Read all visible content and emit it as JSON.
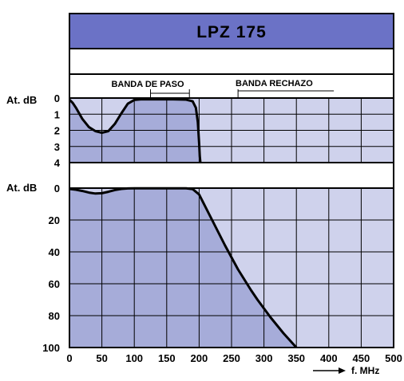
{
  "colors": {
    "title_band": "#6b72c6",
    "plot_light": "#cfd2ec",
    "plot_fill": "#a6acd9",
    "grid": "#000000",
    "curve": "#000000"
  },
  "chart_data": [
    {
      "type": "area",
      "title": "LPZ 175",
      "panel": "top",
      "ylabel": "At. dB",
      "xlim": [
        0,
        500
      ],
      "ylim": [
        0,
        4
      ],
      "y_inverted": true,
      "y_ticks": [
        "0",
        "1",
        "2",
        "3",
        "4"
      ],
      "grid": true,
      "annotations": [
        {
          "text": "BANDA DE PASO",
          "x_range": [
            125,
            185
          ]
        },
        {
          "text": "BANDA RECHAZO",
          "x_from": 260
        }
      ],
      "series": [
        {
          "x": [
            0,
            5,
            10,
            20,
            30,
            40,
            50,
            60,
            70,
            80,
            90,
            100,
            110,
            120,
            140,
            160,
            180,
            190,
            195,
            198,
            200,
            201,
            202
          ],
          "y": [
            0.1,
            0.3,
            0.6,
            1.3,
            1.8,
            2.05,
            2.15,
            2.05,
            1.6,
            0.95,
            0.35,
            0.12,
            0.08,
            0.08,
            0.08,
            0.08,
            0.1,
            0.2,
            0.6,
            1.5,
            2.8,
            3.6,
            4.0
          ]
        }
      ]
    },
    {
      "type": "area",
      "panel": "bottom",
      "ylabel": "At. dB",
      "xlabel": "f. MHz",
      "xlim": [
        0,
        500
      ],
      "ylim": [
        0,
        100
      ],
      "y_inverted": true,
      "x_ticks": [
        "0",
        "50",
        "100",
        "150",
        "200",
        "250",
        "300",
        "350",
        "400",
        "450",
        "500"
      ],
      "y_ticks": [
        "0",
        "20",
        "40",
        "60",
        "80",
        "100"
      ],
      "grid": true,
      "series": [
        {
          "x": [
            0,
            10,
            20,
            30,
            40,
            50,
            60,
            70,
            80,
            90,
            100,
            120,
            140,
            160,
            180,
            190,
            200,
            210,
            220,
            230,
            240,
            250,
            260,
            270,
            280,
            290,
            300,
            310,
            320,
            330,
            340,
            350
          ],
          "y": [
            0.5,
            1.0,
            1.8,
            2.8,
            3.4,
            3.2,
            2.3,
            1.2,
            0.5,
            0.2,
            0.1,
            0.1,
            0.1,
            0.1,
            0.1,
            0.6,
            4.0,
            12.0,
            20.0,
            28.0,
            36.0,
            43.5,
            51.0,
            57.5,
            64.0,
            70.0,
            75.5,
            81.0,
            86.0,
            91.0,
            95.5,
            100.0
          ]
        }
      ]
    }
  ]
}
